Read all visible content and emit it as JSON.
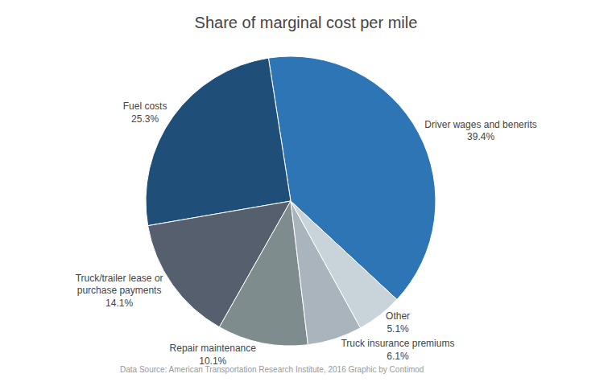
{
  "chart_data": {
    "type": "pie",
    "title": "Share of marginal cost per mile",
    "categories": [
      "Driver wages and benerits",
      "Fuel costs",
      "Truck/trailer lease or\npurchase payments",
      "Repair maintenance",
      "Truck insurance premiums",
      "Other"
    ],
    "values": [
      39.4,
      25.3,
      14.1,
      10.1,
      6.1,
      5.1
    ],
    "value_labels": [
      "39.4%",
      "25.3%",
      "14.1%",
      "10.1%",
      "6.1%",
      "5.1%"
    ],
    "colors": [
      "#2e75b6",
      "#1f4e79",
      "#555f6e",
      "#7f8c8d",
      "#aab4bd",
      "#c9d4da"
    ],
    "data_labels": true,
    "annotations": [
      "Data Source: American Transportation Research Institute, 2016 Graphic by Contimod"
    ]
  }
}
